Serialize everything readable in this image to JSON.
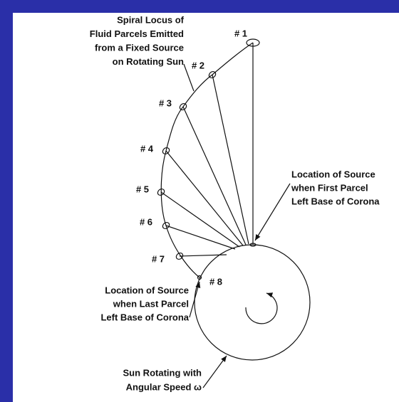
{
  "parcels": [
    "# 1",
    "# 2",
    "# 3",
    "# 4",
    "# 5",
    "# 6",
    "# 7",
    "# 8"
  ],
  "annotations": {
    "spiral": [
      "Spiral Locus of",
      "Fluid Parcels Emitted",
      "from a Fixed Source",
      "on Rotating Sun"
    ],
    "first_source": [
      "Location of Source",
      "when First Parcel",
      "Left Base of Corona"
    ],
    "last_source": [
      "Location of Source",
      "when Last Parcel",
      "Left Base of Corona"
    ],
    "sun": [
      "Sun Rotating with",
      "Angular Speed ω"
    ]
  }
}
